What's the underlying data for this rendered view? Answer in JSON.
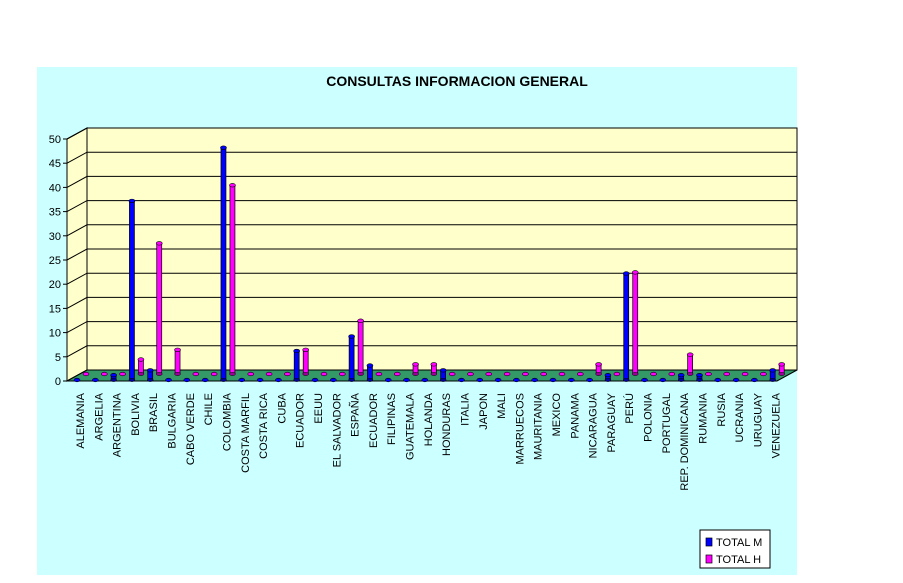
{
  "chart_data": {
    "type": "bar",
    "title": "CONSULTAS INFORMACION GENERAL",
    "xlabel": "",
    "ylabel": "",
    "ylim": [
      0,
      50
    ],
    "yticks": [
      0,
      5,
      10,
      15,
      20,
      25,
      30,
      35,
      40,
      45,
      50
    ],
    "grid": true,
    "legend_position": "bottom-right",
    "categories": [
      "ALEMANIA",
      "ARGELIA",
      "ARGENTINA",
      "BOLIVIA",
      "BRASIL",
      "BULGARIA",
      "CABO VERDE",
      "CHILE",
      "COLOMBIA",
      "COSTA MARFIL",
      "COSTA RICA",
      "CUBA",
      "ECUADOR",
      "EEUU",
      "EL SALVADOR",
      "ESPAÑA",
      "ECUADOR",
      "FILIPINAS",
      "GUATEMALA",
      "HOLANDA",
      "HONDURAS",
      "ITALIA",
      "JAPON",
      "MALI",
      "MARRUECOS",
      "MAURITANIA",
      "MEXICO",
      "PANAMA",
      "NICARAGUA",
      "PARAGUAY",
      "PERÚ",
      "POLONIA",
      "PORTUGAL",
      "REP. DOMINICANA",
      "RUMANIA",
      "RUSIA",
      "UCRANIA",
      "URUGUAY",
      "VENEZUELA"
    ],
    "series": [
      {
        "name": "TOTAL M",
        "color": "#0000ff",
        "values": [
          0,
          0,
          1,
          37,
          2,
          0,
          0,
          0,
          48,
          0,
          0,
          0,
          6,
          0,
          0,
          9,
          3,
          0,
          0,
          0,
          2,
          0,
          0,
          0,
          0,
          0,
          0,
          0,
          0,
          1,
          22,
          0,
          0,
          1,
          1,
          0,
          0,
          0,
          2
        ]
      },
      {
        "name": "TOTAL H",
        "color": "#ff00ff",
        "values": [
          0,
          0,
          0,
          3,
          27,
          5,
          0,
          0,
          39,
          0,
          0,
          0,
          5,
          0,
          0,
          11,
          0,
          0,
          2,
          2,
          0,
          0,
          0,
          0,
          0,
          0,
          0,
          0,
          2,
          0,
          21,
          0,
          0,
          4,
          0,
          0,
          0,
          0,
          2
        ]
      }
    ]
  }
}
